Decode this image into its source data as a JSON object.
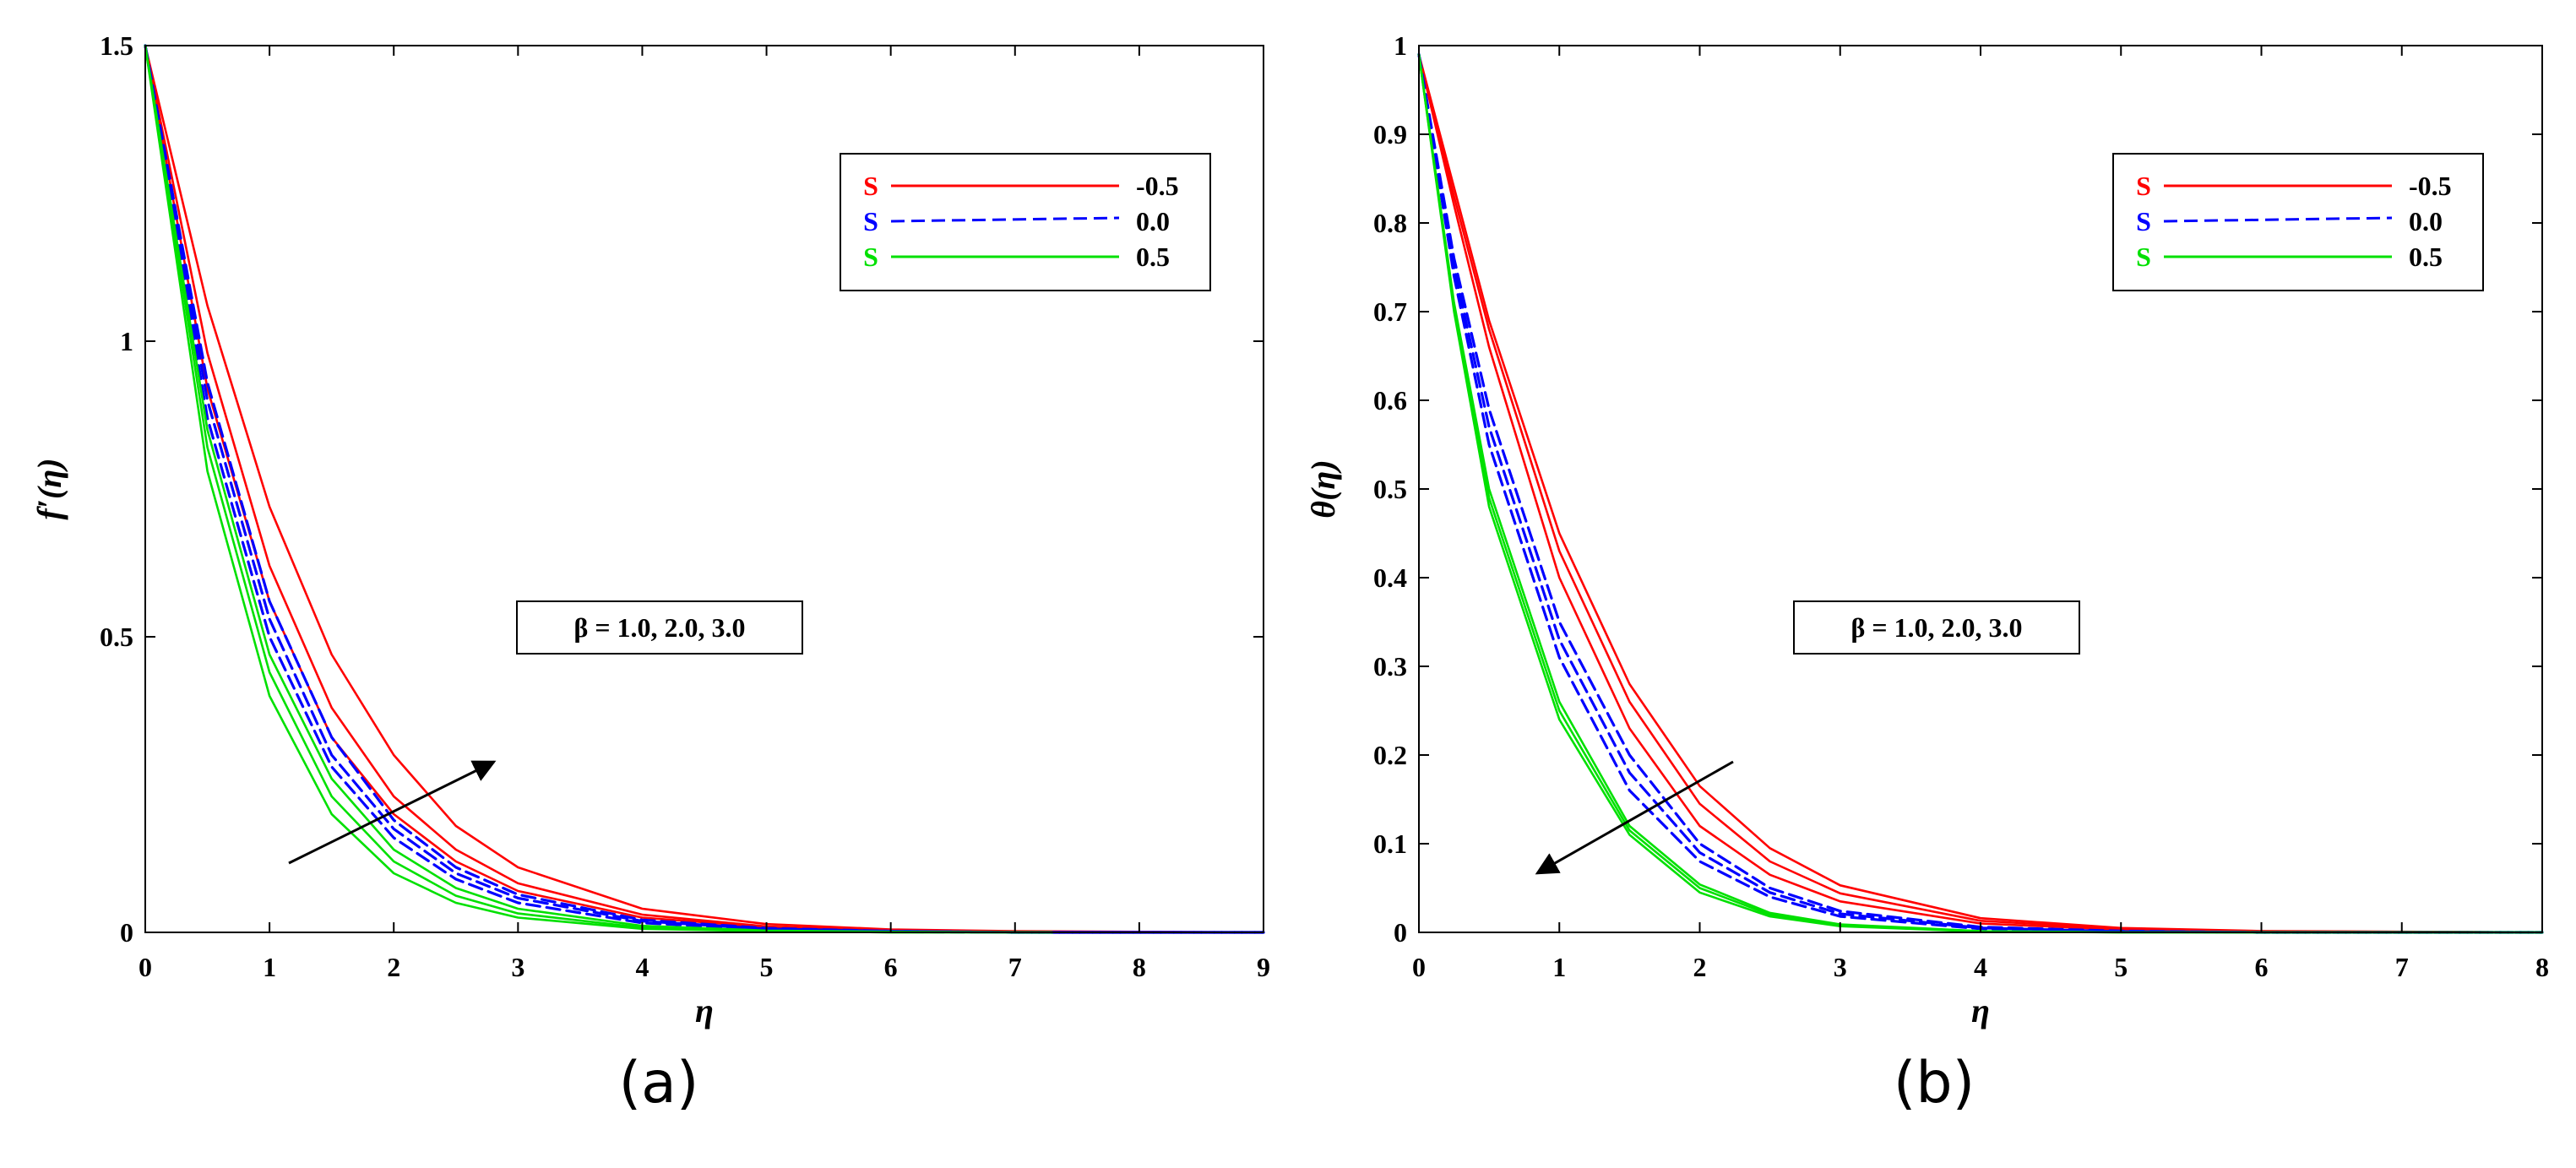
{
  "chart_data": [
    {
      "type": "line",
      "caption": "(a)",
      "xlabel": "η",
      "ylabel": "f′(η)",
      "xlim": [
        0,
        9
      ],
      "ylim": [
        0,
        1.5
      ],
      "xticks": [
        "0",
        "1",
        "2",
        "3",
        "4",
        "5",
        "6",
        "7",
        "8",
        "9"
      ],
      "yticks": [
        "0",
        "0.5",
        "1",
        "1.5"
      ],
      "legend_position": "top-right",
      "legend": [
        {
          "symbol": "S",
          "value": "-0.5",
          "color": "#ff0000",
          "style": "solid"
        },
        {
          "symbol": "S",
          "value": "0.0",
          "color": "#0000ff",
          "style": "dashed"
        },
        {
          "symbol": "S",
          "value": "0.5",
          "color": "#00e000",
          "style": "solid"
        }
      ],
      "annotation": "β = 1.0, 2.0, 3.0",
      "arrow_direction": "up-right",
      "series": [
        {
          "S": "-0.5",
          "beta": "1.0",
          "color": "#ff0000",
          "style": "solid",
          "points": [
            [
              0,
              1.5
            ],
            [
              0.5,
              0.92
            ],
            [
              1,
              0.56
            ],
            [
              1.5,
              0.33
            ],
            [
              2,
              0.2
            ],
            [
              2.5,
              0.12
            ],
            [
              3,
              0.07
            ],
            [
              4,
              0.025
            ],
            [
              5,
              0.009
            ],
            [
              6,
              0.003
            ],
            [
              7,
              0.001
            ],
            [
              9,
              0
            ]
          ]
        },
        {
          "S": "-0.5",
          "beta": "2.0",
          "color": "#ff0000",
          "style": "solid",
          "points": [
            [
              0,
              1.5
            ],
            [
              0.5,
              0.98
            ],
            [
              1,
              0.62
            ],
            [
              1.5,
              0.38
            ],
            [
              2,
              0.23
            ],
            [
              2.5,
              0.14
            ],
            [
              3,
              0.083
            ],
            [
              4,
              0.03
            ],
            [
              5,
              0.01
            ],
            [
              6,
              0.003
            ],
            [
              7,
              0.001
            ],
            [
              9,
              0
            ]
          ]
        },
        {
          "S": "-0.5",
          "beta": "3.0",
          "color": "#ff0000",
          "style": "solid",
          "points": [
            [
              0,
              1.5
            ],
            [
              0.5,
              1.06
            ],
            [
              1,
              0.72
            ],
            [
              1.5,
              0.47
            ],
            [
              2,
              0.3
            ],
            [
              2.5,
              0.18
            ],
            [
              3,
              0.11
            ],
            [
              4,
              0.04
            ],
            [
              5,
              0.014
            ],
            [
              6,
              0.005
            ],
            [
              7,
              0.002
            ],
            [
              9,
              0
            ]
          ]
        },
        {
          "S": "0.0",
          "beta": "1.0",
          "color": "#0000ff",
          "style": "dashed",
          "points": [
            [
              0,
              1.5
            ],
            [
              0.5,
              0.87
            ],
            [
              1,
              0.5
            ],
            [
              1.5,
              0.28
            ],
            [
              2,
              0.16
            ],
            [
              2.5,
              0.09
            ],
            [
              3,
              0.05
            ],
            [
              4,
              0.016
            ],
            [
              5,
              0.005
            ],
            [
              6,
              0.001
            ],
            [
              7,
              0
            ],
            [
              9,
              0
            ]
          ]
        },
        {
          "S": "0.0",
          "beta": "2.0",
          "color": "#0000ff",
          "style": "dashed",
          "points": [
            [
              0,
              1.5
            ],
            [
              0.5,
              0.9
            ],
            [
              1,
              0.53
            ],
            [
              1.5,
              0.3
            ],
            [
              2,
              0.175
            ],
            [
              2.5,
              0.1
            ],
            [
              3,
              0.058
            ],
            [
              4,
              0.019
            ],
            [
              5,
              0.006
            ],
            [
              6,
              0.002
            ],
            [
              7,
              0
            ],
            [
              9,
              0
            ]
          ]
        },
        {
          "S": "0.0",
          "beta": "3.0",
          "color": "#0000ff",
          "style": "dashed",
          "points": [
            [
              0,
              1.5
            ],
            [
              0.5,
              0.93
            ],
            [
              1,
              0.56
            ],
            [
              1.5,
              0.33
            ],
            [
              2,
              0.19
            ],
            [
              2.5,
              0.11
            ],
            [
              3,
              0.064
            ],
            [
              4,
              0.021
            ],
            [
              5,
              0.007
            ],
            [
              6,
              0.002
            ],
            [
              7,
              0
            ],
            [
              9,
              0
            ]
          ]
        },
        {
          "S": "0.5",
          "beta": "1.0",
          "color": "#00e000",
          "style": "solid",
          "points": [
            [
              0,
              1.5
            ],
            [
              0.5,
              0.78
            ],
            [
              1,
              0.4
            ],
            [
              1.5,
              0.2
            ],
            [
              2,
              0.1
            ],
            [
              2.5,
              0.05
            ],
            [
              3,
              0.025
            ],
            [
              4,
              0.006
            ],
            [
              5,
              0.002
            ],
            [
              6,
              0
            ],
            [
              7.3,
              0
            ]
          ]
        },
        {
          "S": "0.5",
          "beta": "2.0",
          "color": "#00e000",
          "style": "solid",
          "points": [
            [
              0,
              1.5
            ],
            [
              0.5,
              0.82
            ],
            [
              1,
              0.44
            ],
            [
              1.5,
              0.23
            ],
            [
              2,
              0.12
            ],
            [
              2.5,
              0.062
            ],
            [
              3,
              0.032
            ],
            [
              4,
              0.008
            ],
            [
              5,
              0.002
            ],
            [
              6,
              0
            ],
            [
              7.3,
              0
            ]
          ]
        },
        {
          "S": "0.5",
          "beta": "3.0",
          "color": "#00e000",
          "style": "solid",
          "points": [
            [
              0,
              1.5
            ],
            [
              0.5,
              0.85
            ],
            [
              1,
              0.47
            ],
            [
              1.5,
              0.26
            ],
            [
              2,
              0.14
            ],
            [
              2.5,
              0.075
            ],
            [
              3,
              0.04
            ],
            [
              4,
              0.011
            ],
            [
              5,
              0.003
            ],
            [
              6,
              0.001
            ],
            [
              7.3,
              0
            ]
          ]
        }
      ]
    },
    {
      "type": "line",
      "caption": "(b)",
      "xlabel": "η",
      "ylabel": "θ(η)",
      "xlim": [
        0,
        8
      ],
      "ylim": [
        0,
        1
      ],
      "xticks": [
        "0",
        "1",
        "2",
        "3",
        "4",
        "5",
        "6",
        "7",
        "8"
      ],
      "yticks": [
        "0",
        "0.1",
        "0.2",
        "0.3",
        "0.4",
        "0.5",
        "0.6",
        "0.7",
        "0.8",
        "0.9",
        "1"
      ],
      "legend_position": "top-right",
      "legend": [
        {
          "symbol": "S",
          "value": "-0.5",
          "color": "#ff0000",
          "style": "solid"
        },
        {
          "symbol": "S",
          "value": "0.0",
          "color": "#0000ff",
          "style": "dashed"
        },
        {
          "symbol": "S",
          "value": "0.5",
          "color": "#00e000",
          "style": "solid"
        }
      ],
      "annotation": "β = 1.0, 2.0, 3.0",
      "arrow_direction": "down-left",
      "series": [
        {
          "S": "-0.5",
          "beta": "1.0",
          "color": "#ff0000",
          "style": "solid",
          "points": [
            [
              0,
              0.99
            ],
            [
              0.25,
              0.82
            ],
            [
              0.5,
              0.66
            ],
            [
              1,
              0.4
            ],
            [
              1.5,
              0.23
            ],
            [
              2,
              0.12
            ],
            [
              2.5,
              0.065
            ],
            [
              3,
              0.035
            ],
            [
              4,
              0.01
            ],
            [
              5,
              0.003
            ],
            [
              6,
              0.001
            ],
            [
              8,
              0
            ]
          ]
        },
        {
          "S": "-0.5",
          "beta": "2.0",
          "color": "#ff0000",
          "style": "solid",
          "points": [
            [
              0,
              0.99
            ],
            [
              0.25,
              0.83
            ],
            [
              0.5,
              0.68
            ],
            [
              1,
              0.43
            ],
            [
              1.5,
              0.26
            ],
            [
              2,
              0.145
            ],
            [
              2.5,
              0.08
            ],
            [
              3,
              0.044
            ],
            [
              4,
              0.013
            ],
            [
              5,
              0.004
            ],
            [
              6,
              0.001
            ],
            [
              8,
              0
            ]
          ]
        },
        {
          "S": "-0.5",
          "beta": "3.0",
          "color": "#ff0000",
          "style": "solid",
          "points": [
            [
              0,
              0.99
            ],
            [
              0.25,
              0.84
            ],
            [
              0.5,
              0.69
            ],
            [
              1,
              0.45
            ],
            [
              1.5,
              0.28
            ],
            [
              2,
              0.165
            ],
            [
              2.5,
              0.095
            ],
            [
              3,
              0.053
            ],
            [
              4,
              0.016
            ],
            [
              5,
              0.005
            ],
            [
              6,
              0.0015
            ],
            [
              8,
              0
            ]
          ]
        },
        {
          "S": "0.0",
          "beta": "1.0",
          "color": "#0000ff",
          "style": "dashed",
          "points": [
            [
              0,
              0.99
            ],
            [
              0.25,
              0.74
            ],
            [
              0.5,
              0.55
            ],
            [
              1,
              0.31
            ],
            [
              1.5,
              0.16
            ],
            [
              2,
              0.08
            ],
            [
              2.5,
              0.04
            ],
            [
              3,
              0.018
            ],
            [
              4,
              0.004
            ],
            [
              5,
              0.001
            ],
            [
              6,
              0
            ],
            [
              8,
              0
            ]
          ]
        },
        {
          "S": "0.0",
          "beta": "2.0",
          "color": "#0000ff",
          "style": "dashed",
          "points": [
            [
              0,
              0.99
            ],
            [
              0.25,
              0.75
            ],
            [
              0.5,
              0.57
            ],
            [
              1,
              0.33
            ],
            [
              1.5,
              0.18
            ],
            [
              2,
              0.09
            ],
            [
              2.5,
              0.045
            ],
            [
              3,
              0.021
            ],
            [
              4,
              0.005
            ],
            [
              5,
              0.001
            ],
            [
              6,
              0
            ],
            [
              8,
              0
            ]
          ]
        },
        {
          "S": "0.0",
          "beta": "3.0",
          "color": "#0000ff",
          "style": "dashed",
          "points": [
            [
              0,
              0.99
            ],
            [
              0.25,
              0.76
            ],
            [
              0.5,
              0.59
            ],
            [
              1,
              0.35
            ],
            [
              1.5,
              0.2
            ],
            [
              2,
              0.1
            ],
            [
              2.5,
              0.05
            ],
            [
              3,
              0.024
            ],
            [
              4,
              0.006
            ],
            [
              5,
              0.0015
            ],
            [
              6,
              0
            ],
            [
              8,
              0
            ]
          ]
        },
        {
          "S": "0.5",
          "beta": "1.0",
          "color": "#00e000",
          "style": "solid",
          "points": [
            [
              0,
              0.99
            ],
            [
              0.25,
              0.7
            ],
            [
              0.5,
              0.48
            ],
            [
              1,
              0.24
            ],
            [
              1.5,
              0.11
            ],
            [
              2,
              0.045
            ],
            [
              2.5,
              0.018
            ],
            [
              3,
              0.007
            ],
            [
              4,
              0.001
            ],
            [
              5,
              0
            ],
            [
              8,
              0
            ]
          ]
        },
        {
          "S": "0.5",
          "beta": "2.0",
          "color": "#00e000",
          "style": "solid",
          "points": [
            [
              0,
              0.99
            ],
            [
              0.25,
              0.705
            ],
            [
              0.5,
              0.49
            ],
            [
              1,
              0.25
            ],
            [
              1.5,
              0.115
            ],
            [
              2,
              0.05
            ],
            [
              2.5,
              0.02
            ],
            [
              3,
              0.008
            ],
            [
              4,
              0.0012
            ],
            [
              5,
              0
            ],
            [
              8,
              0
            ]
          ]
        },
        {
          "S": "0.5",
          "beta": "3.0",
          "color": "#00e000",
          "style": "solid",
          "points": [
            [
              0,
              0.99
            ],
            [
              0.25,
              0.71
            ],
            [
              0.5,
              0.5
            ],
            [
              1,
              0.26
            ],
            [
              1.5,
              0.12
            ],
            [
              2,
              0.054
            ],
            [
              2.5,
              0.022
            ],
            [
              3,
              0.009
            ],
            [
              4,
              0.0014
            ],
            [
              5,
              0
            ],
            [
              8,
              0
            ]
          ]
        }
      ]
    }
  ]
}
